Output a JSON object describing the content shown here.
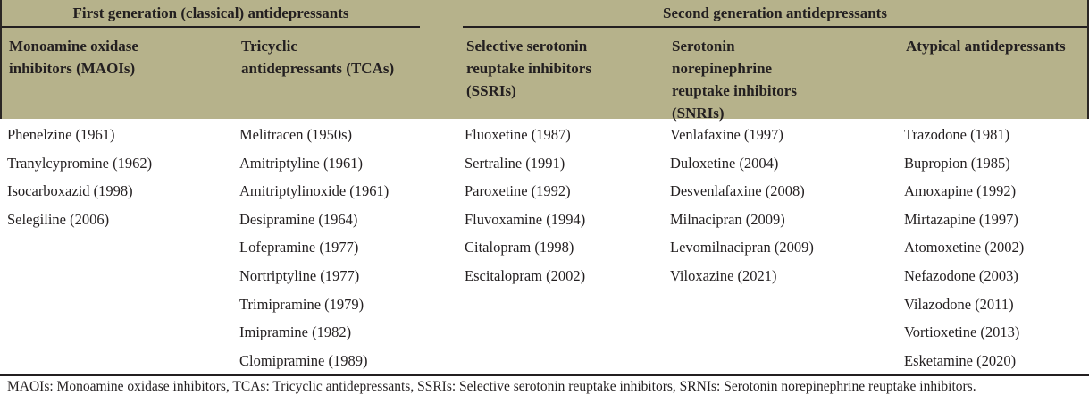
{
  "table": {
    "group_headers": [
      {
        "label": "First generation (classical) antidepressants",
        "span": 2
      },
      {
        "label": "Second generation antidepressants",
        "span": 3
      }
    ],
    "columns": [
      {
        "header": "Monoamine oxidase\ninhibitors (MAOIs)",
        "drugs": [
          "Phenelzine (1961)",
          "Tranylcypromine (1962)",
          "Isocarboxazid (1998)",
          "Selegiline (2006)"
        ]
      },
      {
        "header": "Tricyclic\nantidepressants (TCAs)",
        "drugs": [
          "Melitracen (1950s)",
          "Amitriptyline (1961)",
          "Amitriptylinoxide (1961)",
          "Desipramine (1964)",
          "Lofepramine (1977)",
          "Nortriptyline (1977)",
          "Trimipramine (1979)",
          "Imipramine (1982)",
          "Clomipramine (1989)"
        ]
      },
      {
        "header": "Selective serotonin\nreuptake inhibitors\n(SSRIs)",
        "drugs": [
          "Fluoxetine (1987)",
          "Sertraline (1991)",
          "Paroxetine (1992)",
          "Fluvoxamine (1994)",
          "Citalopram (1998)",
          "Escitalopram (2002)"
        ]
      },
      {
        "header": "Serotonin\nnorepinephrine\nreuptake inhibitors\n(SNRIs)",
        "drugs": [
          "Venlafaxine (1997)",
          "Duloxetine (2004)",
          "Desvenlafaxine (2008)",
          "Milnacipran (2009)",
          "Levomilnacipran (2009)",
          "Viloxazine (2021)"
        ]
      },
      {
        "header": "Atypical antidepressants",
        "drugs": [
          "Trazodone (1981)",
          "Bupropion (1985)",
          "Amoxapine (1992)",
          "Mirtazapine (1997)",
          "Atomoxetine (2002)",
          "Nefazodone (2003)",
          "Vilazodone (2011)",
          "Vortioxetine (2013)",
          "Esketamine (2020)"
        ]
      }
    ],
    "footnote": "MAOIs: Monoamine oxidase inhibitors, TCAs: Tricyclic antidepressants, SSRIs: Selective serotonin reuptake inhibitors, SRNIs: Serotonin norepinephrine reuptake inhibitors.",
    "colors": {
      "header_bg": "#b6b28b",
      "rule": "#231f20",
      "text": "#231f20"
    }
  }
}
